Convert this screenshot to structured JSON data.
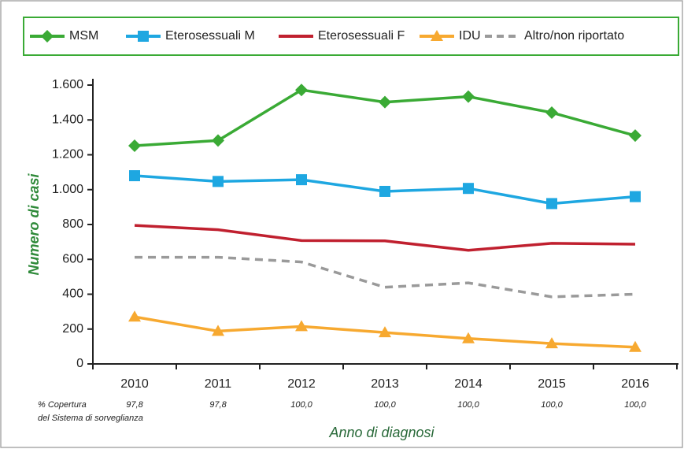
{
  "chart_data": {
    "type": "line",
    "categories": [
      "2010",
      "2011",
      "2012",
      "2013",
      "2014",
      "2015",
      "2016"
    ],
    "series": [
      {
        "name": "MSM",
        "color": "#3aaa35",
        "marker": "diamond",
        "values": [
          1252,
          1282,
          1572,
          1502,
          1534,
          1442,
          1310
        ]
      },
      {
        "name": "Eterosessuali M",
        "color": "#1ea7e1",
        "marker": "square",
        "values": [
          1080,
          1047,
          1057,
          990,
          1007,
          920,
          960
        ]
      },
      {
        "name": "Eterosessuali F",
        "color": "#c0202f",
        "values": [
          795,
          770,
          708,
          706,
          652,
          692,
          687
        ]
      },
      {
        "name": "IDU",
        "color": "#f7a930",
        "marker": "triangle",
        "values": [
          270,
          188,
          215,
          180,
          146,
          117,
          96
        ]
      },
      {
        "name": "Altro/non riportato",
        "color": "#9a9a9a",
        "dashed": true,
        "values": [
          612,
          612,
          585,
          440,
          465,
          385,
          400
        ]
      }
    ],
    "ylim": [
      0,
      1600
    ],
    "yticks": [
      0,
      200,
      400,
      600,
      800,
      {
        "value": 1000,
        "label": "1.000"
      },
      {
        "value": 1200,
        "label": "1.200"
      },
      {
        "value": 1400,
        "label": "1.400"
      },
      {
        "value": 1600,
        "label": "1.600"
      }
    ],
    "y_label": "Numero di casi",
    "x_label": "Anno di diagnosi",
    "coverage_title": [
      "% Copertura",
      "del Sistema di sorveglianza"
    ],
    "coverage_labels": [
      "97,8",
      "97,8",
      "100,0",
      "100,0",
      "100,0",
      "100,0",
      "100,0"
    ]
  }
}
